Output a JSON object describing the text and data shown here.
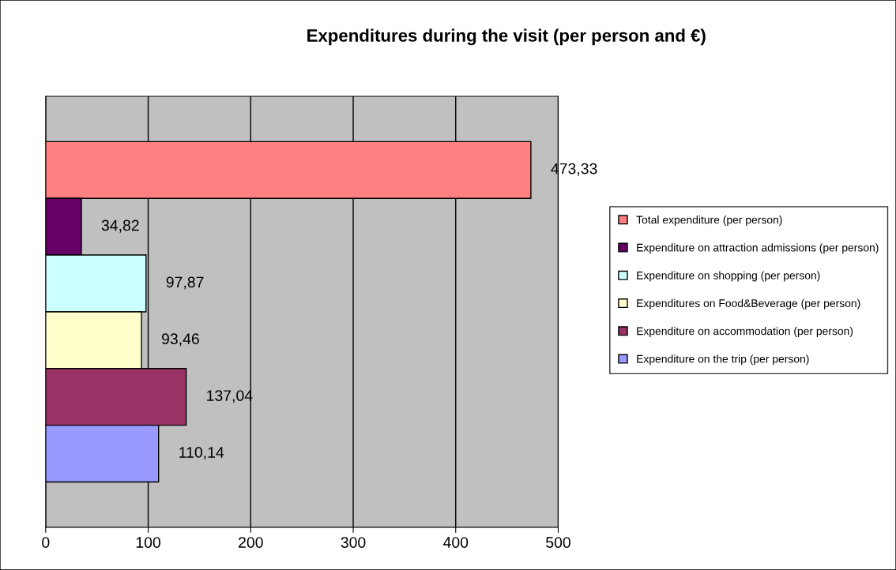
{
  "chart_data": {
    "type": "bar",
    "orientation": "horizontal",
    "title": "Expenditures during the visit (per person and €)",
    "categories": [
      null
    ],
    "series": [
      {
        "name": "Total expenditure (per person)",
        "color": "#ff8080",
        "values": [
          473.33
        ],
        "value_labels": [
          "473,33"
        ]
      },
      {
        "name": "Expenditure on attraction admissions (per person)",
        "color": "#660066",
        "values": [
          34.82
        ],
        "value_labels": [
          "34,82"
        ]
      },
      {
        "name": "Expenditure on shopping (per person)",
        "color": "#ccffff",
        "values": [
          97.87
        ],
        "value_labels": [
          "97,87"
        ]
      },
      {
        "name": "Expenditures on Food&Beverage (per person)",
        "color": "#ffffcc",
        "values": [
          93.46
        ],
        "value_labels": [
          "93,46"
        ]
      },
      {
        "name": "Expenditure on accommodation (per person)",
        "color": "#993366",
        "values": [
          137.04
        ],
        "value_labels": [
          "137,04"
        ]
      },
      {
        "name": "Expenditure on the trip (per person)",
        "color": "#9999ff",
        "values": [
          110.14
        ],
        "value_labels": [
          "110,14"
        ]
      }
    ],
    "xlim": [
      0,
      500
    ],
    "xticks": [
      0,
      100,
      200,
      300,
      400,
      500
    ],
    "grid": "x",
    "legend": "right"
  }
}
